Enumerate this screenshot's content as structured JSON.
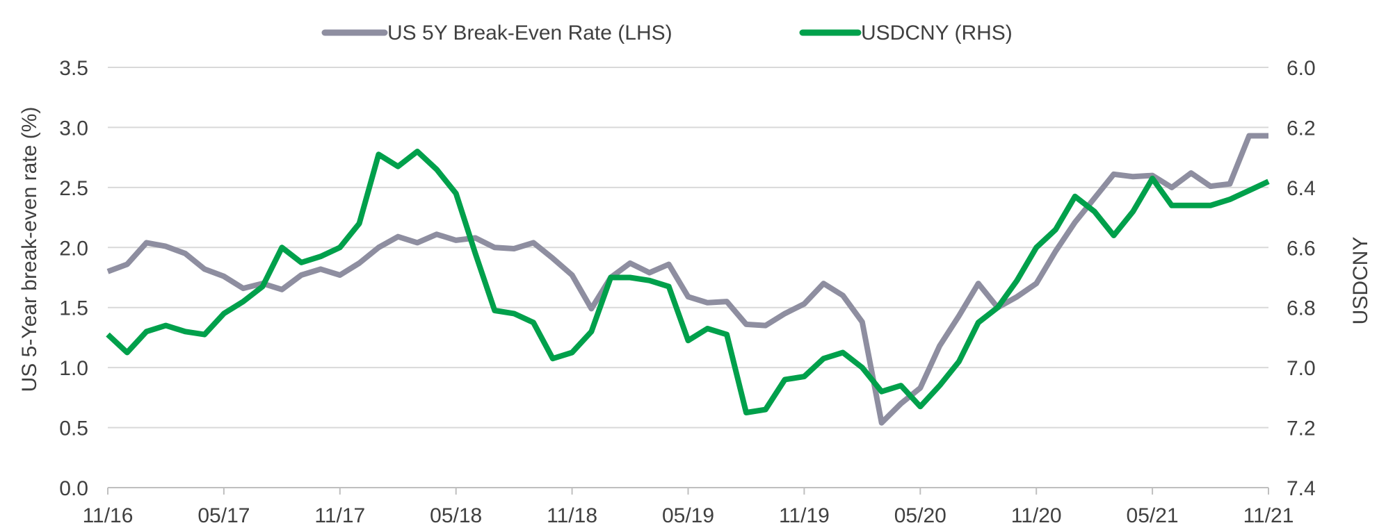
{
  "chart_data": {
    "type": "line",
    "x": [
      "11/16",
      "12/16",
      "01/17",
      "02/17",
      "03/17",
      "04/17",
      "05/17",
      "06/17",
      "07/17",
      "08/17",
      "09/17",
      "10/17",
      "11/17",
      "12/17",
      "01/18",
      "02/18",
      "03/18",
      "04/18",
      "05/18",
      "06/18",
      "07/18",
      "08/18",
      "09/18",
      "10/18",
      "11/18",
      "12/18",
      "01/19",
      "02/19",
      "03/19",
      "04/19",
      "05/19",
      "06/19",
      "07/19",
      "08/19",
      "09/19",
      "10/19",
      "11/19",
      "12/19",
      "01/20",
      "02/20",
      "03/20",
      "04/20",
      "05/20",
      "06/20",
      "07/20",
      "08/20",
      "09/20",
      "10/20",
      "11/20",
      "12/20",
      "01/21",
      "02/21",
      "03/21",
      "04/21",
      "05/21",
      "06/21",
      "07/21",
      "08/21",
      "09/21",
      "10/21",
      "11/21"
    ],
    "x_tick_labels": [
      "11/16",
      "05/17",
      "11/17",
      "05/18",
      "11/18",
      "05/19",
      "11/19",
      "05/20",
      "11/20",
      "05/21",
      "11/21"
    ],
    "series": [
      {
        "name": "US 5Y Break-Even Rate (LHS)",
        "axis": "left",
        "color": "#8E8EA0",
        "values": [
          1.8,
          1.86,
          2.04,
          2.01,
          1.95,
          1.82,
          1.76,
          1.66,
          1.7,
          1.65,
          1.77,
          1.82,
          1.77,
          1.87,
          2.0,
          2.09,
          2.04,
          2.11,
          2.06,
          2.08,
          2.0,
          1.99,
          2.04,
          1.91,
          1.77,
          1.49,
          1.75,
          1.87,
          1.79,
          1.86,
          1.59,
          1.54,
          1.55,
          1.36,
          1.35,
          1.45,
          1.53,
          1.7,
          1.6,
          1.38,
          0.54,
          0.7,
          0.83,
          1.18,
          1.43,
          1.7,
          1.5,
          1.59,
          1.7,
          1.97,
          2.21,
          2.41,
          2.61,
          2.59,
          2.6,
          2.5,
          2.62,
          2.51,
          2.53,
          2.93,
          2.93
        ]
      },
      {
        "name": "USDCNY (RHS)",
        "axis": "right",
        "color": "#00A04B",
        "values": [
          6.89,
          6.95,
          6.88,
          6.86,
          6.88,
          6.89,
          6.82,
          6.78,
          6.73,
          6.6,
          6.65,
          6.63,
          6.6,
          6.52,
          6.29,
          6.33,
          6.28,
          6.34,
          6.42,
          6.62,
          6.81,
          6.82,
          6.85,
          6.97,
          6.95,
          6.88,
          6.7,
          6.7,
          6.71,
          6.73,
          6.91,
          6.87,
          6.89,
          7.15,
          7.14,
          7.04,
          7.03,
          6.97,
          6.95,
          7.0,
          7.08,
          7.06,
          7.13,
          7.06,
          6.98,
          6.85,
          6.8,
          6.71,
          6.6,
          6.54,
          6.43,
          6.48,
          6.56,
          6.48,
          6.37,
          6.46,
          6.46,
          6.46,
          6.44,
          6.41,
          6.38
        ]
      }
    ],
    "y_left": {
      "label": "US 5-Year break-even rate (%)",
      "min": 0.0,
      "max": 3.5,
      "ticks": [
        "0.0",
        "0.5",
        "1.0",
        "1.5",
        "2.0",
        "2.5",
        "3.0",
        "3.5"
      ]
    },
    "y_right": {
      "label": "USDCNY",
      "min": 6.0,
      "max": 7.4,
      "inverted": true,
      "ticks": [
        "6.0",
        "6.2",
        "6.4",
        "6.6",
        "6.8",
        "7.0",
        "7.2",
        "7.4"
      ]
    },
    "grid": true,
    "legend_position": "top-center"
  }
}
